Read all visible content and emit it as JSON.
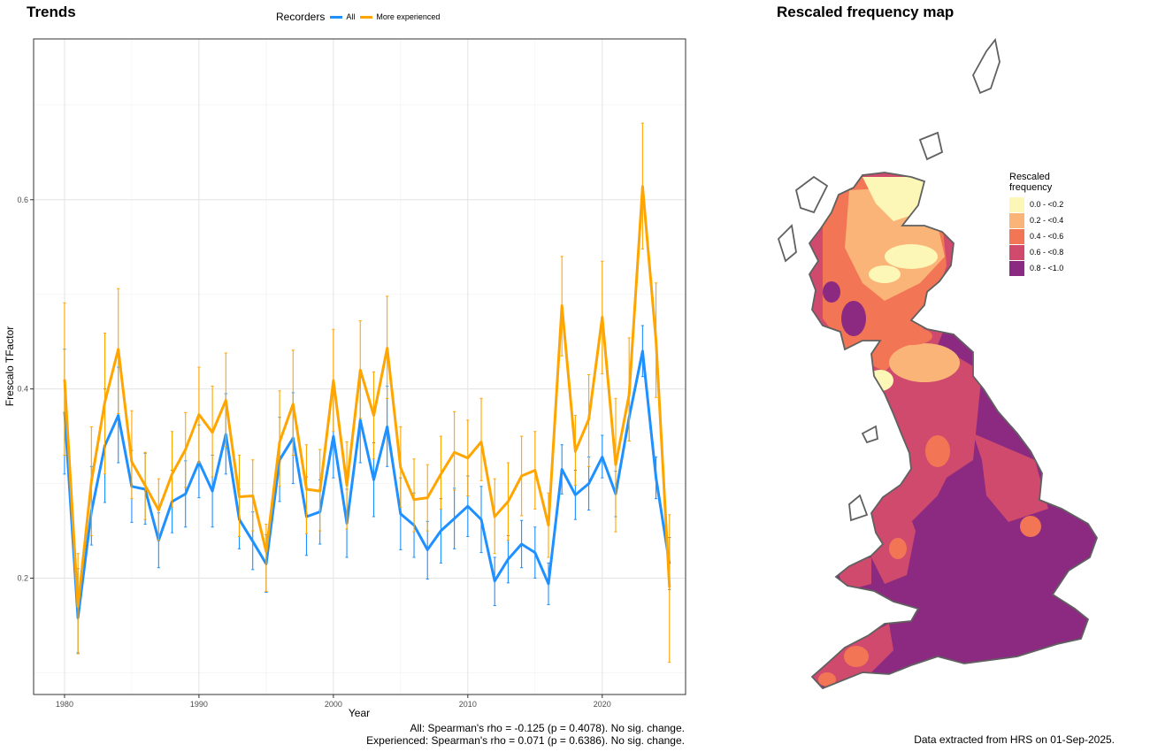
{
  "titles": {
    "trends": "Trends",
    "map": "Rescaled frequency map"
  },
  "legend": {
    "title": "Recorders",
    "items": [
      {
        "label": "All",
        "color": "#1E90FF"
      },
      {
        "label": "More experienced",
        "color": "#FFA500"
      }
    ]
  },
  "stats": {
    "line1": "All: Spearman's rho = -0.125 (p = 0.4078). No sig. change.",
    "line2": "Experienced: Spearman's rho = 0.071 (p = 0.6386). No sig. change."
  },
  "footer": "Data extracted from HRS on 01-Sep-2025.",
  "map_legend": {
    "title_line1": "Rescaled",
    "title_line2": "frequency",
    "bins": [
      {
        "label": "0.0 - <0.2",
        "color": "#FCF7B6"
      },
      {
        "label": "0.2 - <0.4",
        "color": "#FBB478"
      },
      {
        "label": "0.4 - <0.6",
        "color": "#F27555"
      },
      {
        "label": "0.6 - <0.8",
        "color": "#D04A6E"
      },
      {
        "label": "0.8 - <1.0",
        "color": "#8B2A80"
      }
    ]
  },
  "map_colors": {
    "outline": "#606060"
  },
  "chart_data": {
    "type": "line",
    "xlabel": "Year",
    "ylabel": "Frescalo TFactor",
    "xlim": [
      1977.7,
      2026.2
    ],
    "ylim": [
      0.077,
      0.77
    ],
    "xticks": [
      1980,
      1990,
      2000,
      2010,
      2020
    ],
    "yticks": [
      0.2,
      0.4,
      0.6
    ],
    "ytick_labels": [
      "0.2",
      "0.4",
      "0.6"
    ],
    "grid": true,
    "legend_position": "top",
    "x": [
      1980,
      1981,
      1982,
      1983,
      1984,
      1985,
      1986,
      1987,
      1988,
      1989,
      1990,
      1991,
      1992,
      1993,
      1994,
      1995,
      1996,
      1997,
      1998,
      1999,
      2000,
      2001,
      2002,
      2003,
      2004,
      2005,
      2006,
      2007,
      2008,
      2009,
      2010,
      2011,
      2012,
      2013,
      2014,
      2015,
      2016,
      2017,
      2018,
      2019,
      2020,
      2021,
      2022,
      2023,
      2024,
      2025
    ],
    "series": [
      {
        "name": "All",
        "color": "#1E90FF",
        "values": [
          0.376,
          0.158,
          0.27,
          0.34,
          0.372,
          0.297,
          0.294,
          0.24,
          0.281,
          0.289,
          0.323,
          0.292,
          0.352,
          0.262,
          0.239,
          0.215,
          0.325,
          0.348,
          0.265,
          0.27,
          0.35,
          0.258,
          0.367,
          0.304,
          0.36,
          0.268,
          0.256,
          0.23,
          0.25,
          0.263,
          0.276,
          0.262,
          0.197,
          0.22,
          0.236,
          0.227,
          0.194,
          0.315,
          0.288,
          0.3,
          0.328,
          0.289,
          0.37,
          0.44,
          0.306,
          0.215
        ],
        "lower": [
          0.31,
          0.121,
          0.235,
          0.28,
          0.322,
          0.259,
          0.257,
          0.211,
          0.248,
          0.254,
          0.285,
          0.254,
          0.31,
          0.231,
          0.209,
          0.185,
          0.281,
          0.3,
          0.224,
          0.236,
          0.306,
          0.222,
          0.322,
          0.265,
          0.318,
          0.23,
          0.222,
          0.199,
          0.216,
          0.231,
          0.244,
          0.227,
          0.171,
          0.195,
          0.211,
          0.2,
          0.172,
          0.289,
          0.262,
          0.272,
          0.306,
          0.265,
          0.345,
          0.413,
          0.284,
          0.188
        ],
        "upper": [
          0.442,
          0.21,
          0.318,
          0.4,
          0.423,
          0.335,
          0.332,
          0.269,
          0.314,
          0.324,
          0.362,
          0.33,
          0.395,
          0.294,
          0.27,
          0.246,
          0.37,
          0.396,
          0.307,
          0.304,
          0.394,
          0.294,
          0.412,
          0.343,
          0.403,
          0.306,
          0.29,
          0.26,
          0.284,
          0.295,
          0.308,
          0.297,
          0.222,
          0.245,
          0.261,
          0.254,
          0.216,
          0.341,
          0.314,
          0.328,
          0.351,
          0.313,
          0.396,
          0.467,
          0.328,
          0.243
        ]
      },
      {
        "name": "More experienced",
        "color": "#FFA500",
        "values": [
          0.41,
          0.17,
          0.302,
          0.386,
          0.442,
          0.323,
          0.298,
          0.272,
          0.31,
          0.336,
          0.373,
          0.354,
          0.388,
          0.286,
          0.287,
          0.228,
          0.344,
          0.384,
          0.294,
          0.292,
          0.409,
          0.298,
          0.42,
          0.372,
          0.443,
          0.317,
          0.283,
          0.285,
          0.31,
          0.333,
          0.327,
          0.344,
          0.265,
          0.281,
          0.308,
          0.314,
          0.256,
          0.488,
          0.334,
          0.368,
          0.476,
          0.32,
          0.394,
          0.614,
          0.451,
          0.19
        ],
        "lower": [
          0.33,
          0.12,
          0.245,
          0.31,
          0.374,
          0.284,
          0.262,
          0.24,
          0.275,
          0.296,
          0.322,
          0.307,
          0.339,
          0.244,
          0.25,
          0.186,
          0.297,
          0.33,
          0.247,
          0.25,
          0.355,
          0.252,
          0.369,
          0.326,
          0.39,
          0.275,
          0.249,
          0.25,
          0.273,
          0.293,
          0.287,
          0.303,
          0.226,
          0.24,
          0.266,
          0.273,
          0.222,
          0.435,
          0.298,
          0.318,
          0.416,
          0.249,
          0.345,
          0.548,
          0.391,
          0.111
        ],
        "upper": [
          0.491,
          0.226,
          0.36,
          0.459,
          0.506,
          0.377,
          0.333,
          0.305,
          0.355,
          0.375,
          0.423,
          0.403,
          0.438,
          0.33,
          0.325,
          0.257,
          0.398,
          0.441,
          0.341,
          0.336,
          0.463,
          0.344,
          0.472,
          0.418,
          0.498,
          0.36,
          0.326,
          0.32,
          0.35,
          0.376,
          0.367,
          0.39,
          0.305,
          0.322,
          0.35,
          0.355,
          0.29,
          0.54,
          0.372,
          0.415,
          0.535,
          0.39,
          0.454,
          0.681,
          0.512,
          0.267
        ]
      }
    ]
  }
}
